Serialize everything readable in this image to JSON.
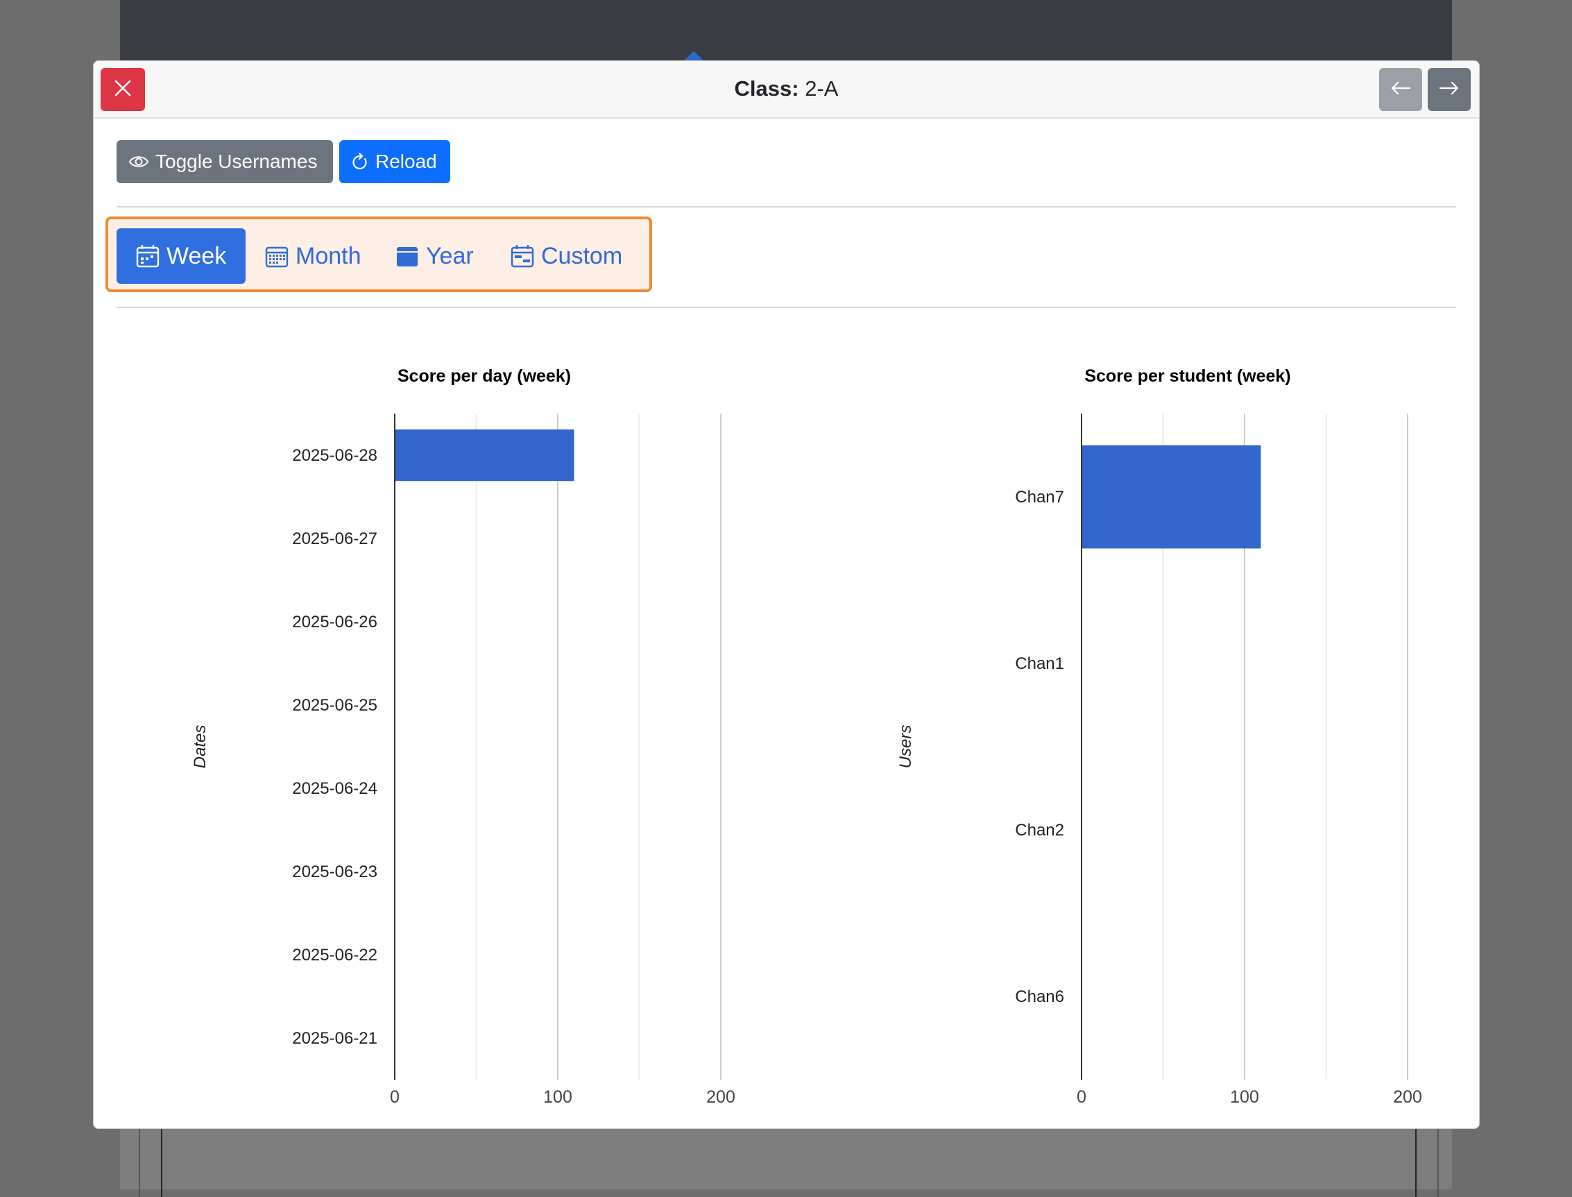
{
  "modal": {
    "title_label": "Class:",
    "title_value": "2-A"
  },
  "toolbar": {
    "toggle_label": "Toggle Usernames",
    "reload_label": "Reload"
  },
  "period": {
    "selected": "Week",
    "options": [
      "Week",
      "Month",
      "Year",
      "Custom"
    ]
  },
  "colors": {
    "accent": "#0d6efd",
    "bar": "#3366cc",
    "close": "#dc3545",
    "highlight_border": "#ee8a33",
    "highlight_fill": "#fdeee6"
  },
  "chart_data": [
    {
      "type": "bar",
      "orientation": "horizontal",
      "title": "Score per day (week)",
      "ylabel": "Dates",
      "xlabel": "",
      "categories": [
        "2025-06-28",
        "2025-06-27",
        "2025-06-26",
        "2025-06-25",
        "2025-06-24",
        "2025-06-23",
        "2025-06-22",
        "2025-06-21"
      ],
      "values": [
        110,
        0,
        0,
        0,
        0,
        0,
        0,
        0
      ],
      "xlim": [
        0,
        200
      ],
      "xticks": [
        0,
        100,
        200
      ],
      "grid": true
    },
    {
      "type": "bar",
      "orientation": "horizontal",
      "title": "Score per student (week)",
      "ylabel": "Users",
      "xlabel": "",
      "categories": [
        "Chan7",
        "Chan1",
        "Chan2",
        "Chan6"
      ],
      "values": [
        110,
        0,
        0,
        0
      ],
      "xlim": [
        0,
        200
      ],
      "xticks": [
        0,
        100,
        200
      ],
      "grid": true
    }
  ]
}
